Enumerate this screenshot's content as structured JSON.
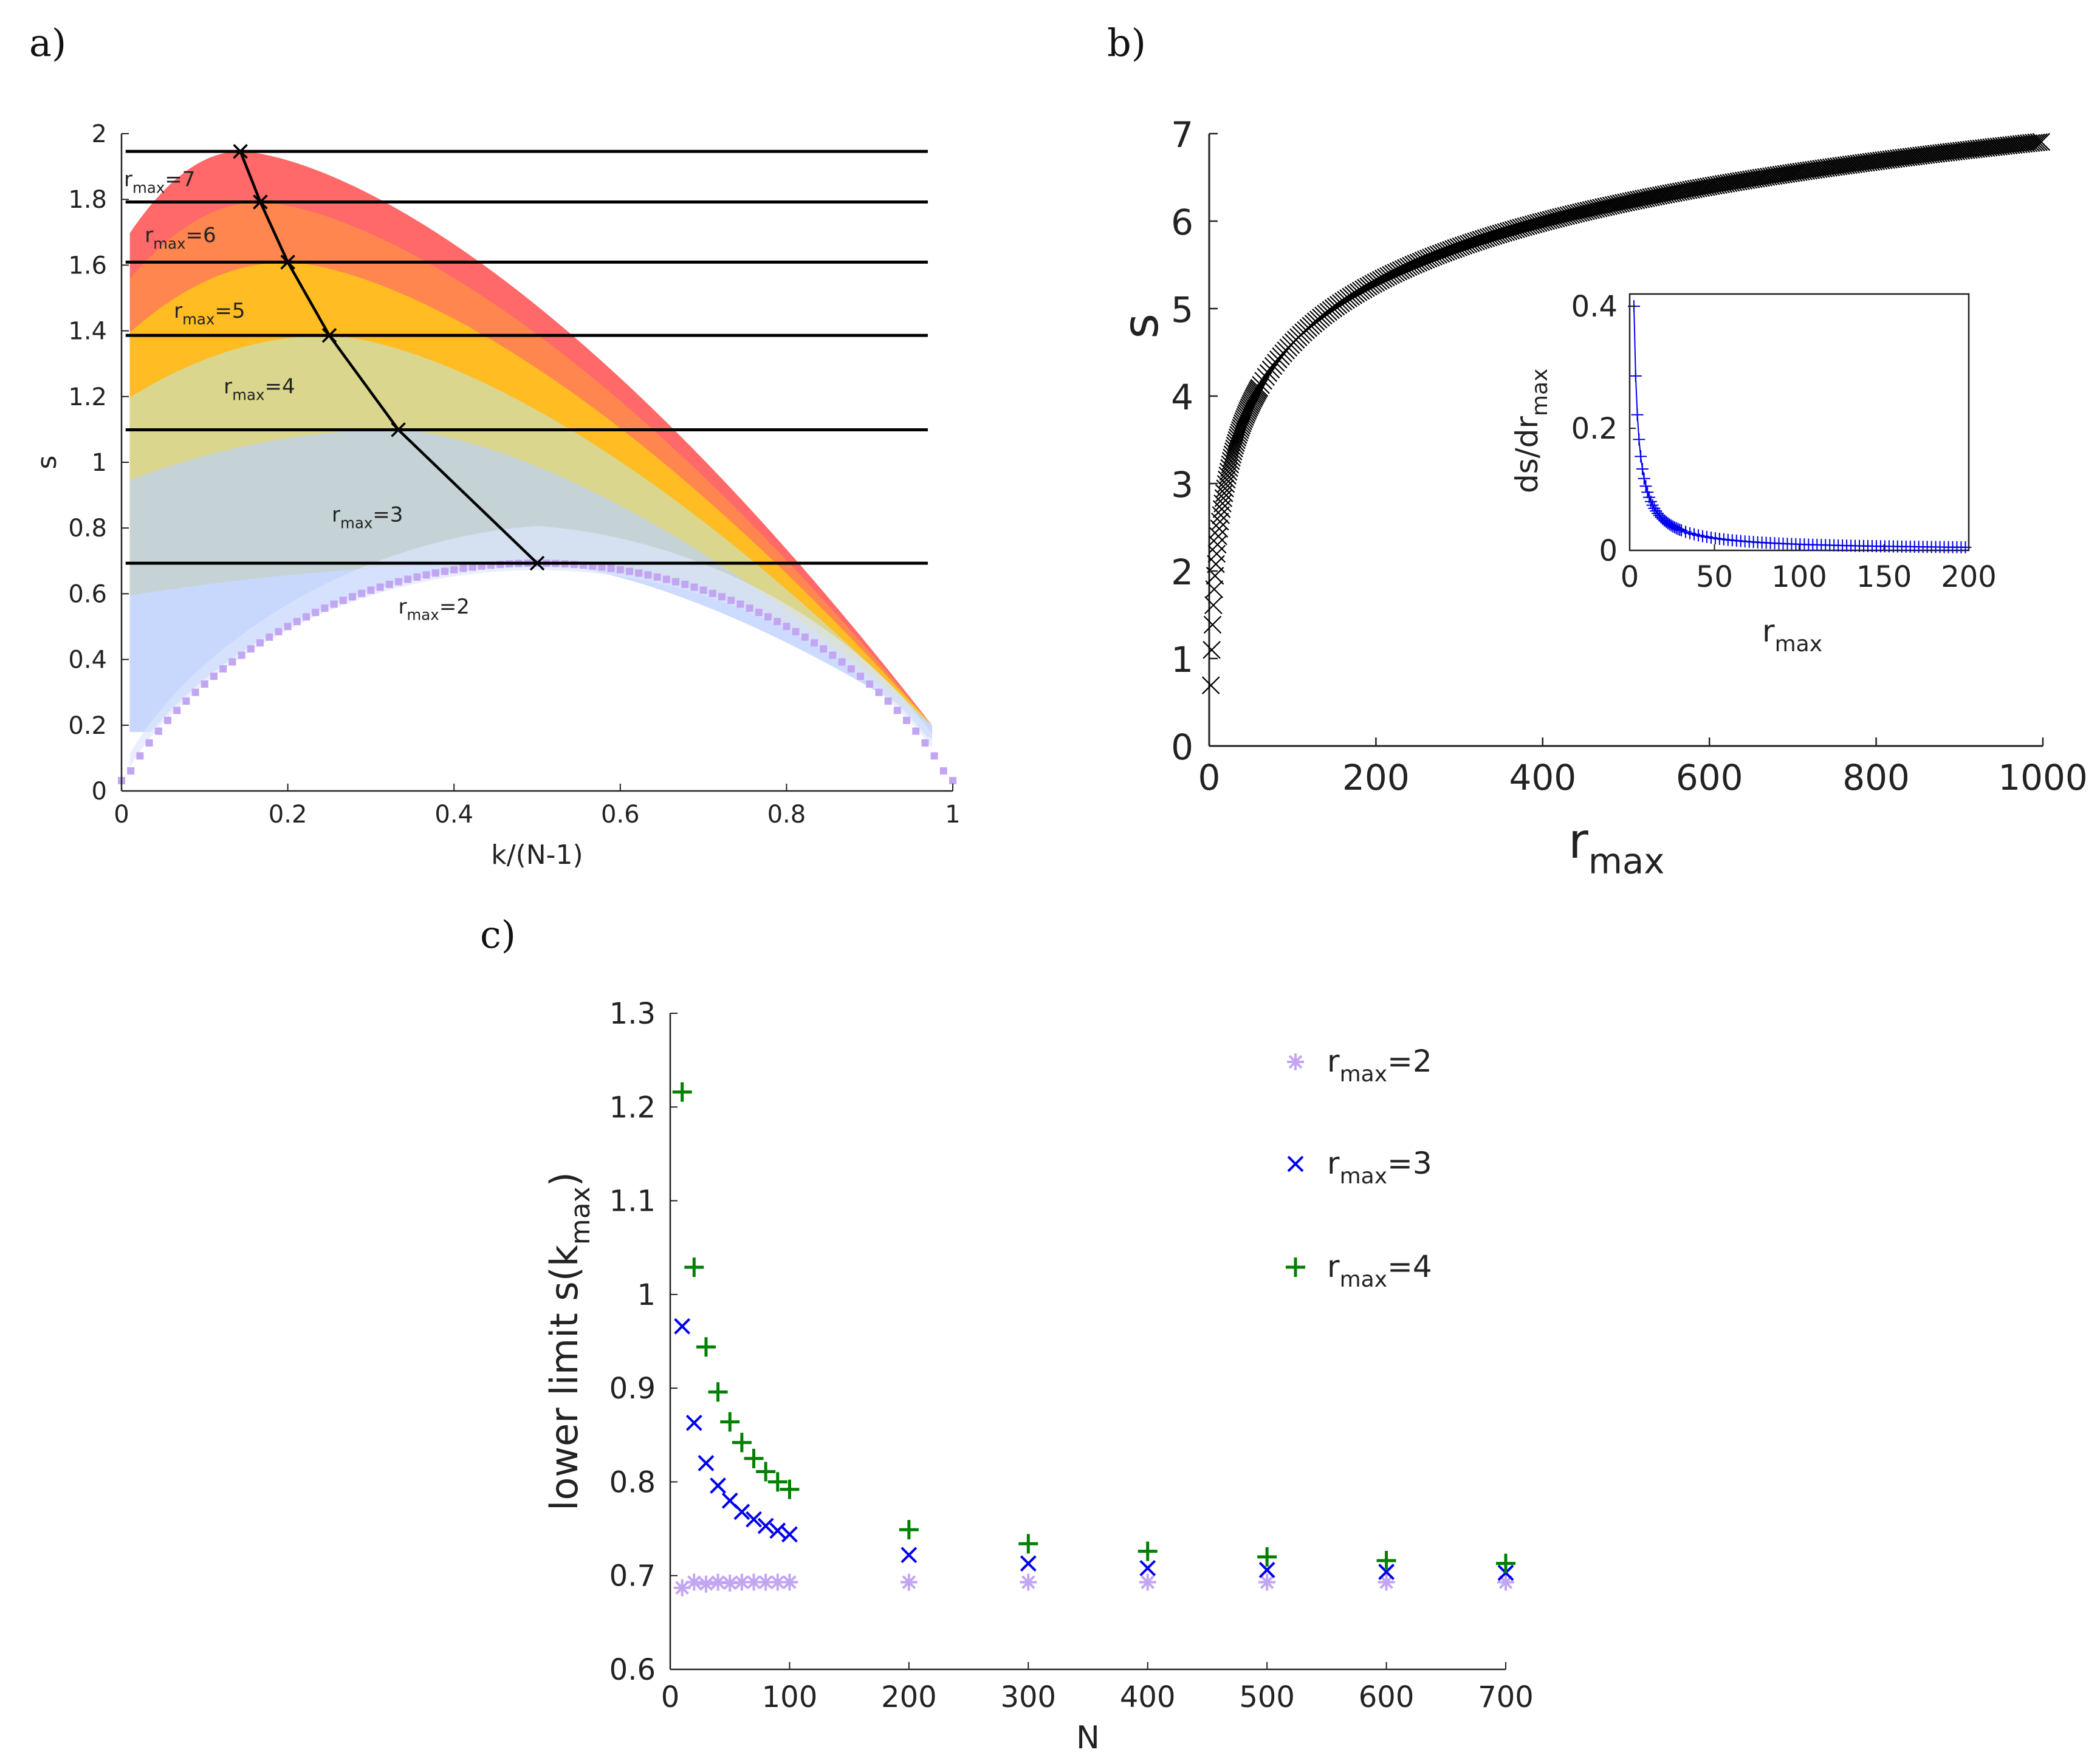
{
  "chart_data": [
    {
      "panel": "a)",
      "type": "area",
      "xlabel": "k/(N-1)",
      "ylabel": "s",
      "xlim": [
        0,
        1
      ],
      "ylim": [
        0,
        2
      ],
      "xticks": [
        "0",
        "0.2",
        "0.4",
        "0.6",
        "0.8",
        "1"
      ],
      "yticks": [
        "0",
        "0.2",
        "0.4",
        "0.6",
        "0.8",
        "1",
        "1.2",
        "1.4",
        "1.6",
        "1.8",
        "2"
      ],
      "bands": [
        {
          "name": "r_max=7",
          "color": "#ff6161",
          "peak_x": 0.143,
          "peak_s": 1.946
        },
        {
          "name": "r_max=6",
          "color": "#ff8a4d",
          "peak_x": 0.167,
          "peak_s": 1.792
        },
        {
          "name": "r_max=5",
          "color": "#ffc020",
          "peak_x": 0.2,
          "peak_s": 1.609
        },
        {
          "name": "r_max=4",
          "color": "#d8d898",
          "peak_x": 0.25,
          "peak_s": 1.386
        },
        {
          "name": "r_max=3",
          "color": "#c4d2dc",
          "peak_x": 0.333,
          "peak_s": 1.099
        },
        {
          "name": "r_max=2",
          "color": "#c8d8ff",
          "peak_x": 0.5,
          "peak_s": 0.693
        }
      ],
      "horizontal_lines": [
        1.946,
        1.792,
        1.609,
        1.386,
        1.099,
        0.693
      ],
      "maxima_line": {
        "x": [
          0.143,
          0.167,
          0.2,
          0.25,
          0.333,
          0.5
        ],
        "y": [
          1.946,
          1.792,
          1.609,
          1.386,
          1.099,
          0.693
        ]
      },
      "labels": [
        {
          "sub": "max",
          "pre": "r",
          "post": "=7"
        },
        {
          "sub": "max",
          "pre": "r",
          "post": "=6"
        },
        {
          "sub": "max",
          "pre": "r",
          "post": "=5"
        },
        {
          "sub": "max",
          "pre": "r",
          "post": "=4"
        },
        {
          "sub": "max",
          "pre": "r",
          "post": "=3"
        },
        {
          "sub": "max",
          "pre": "r",
          "post": "=2"
        }
      ],
      "binary_entropy_dots_color": "#c3a6f2"
    },
    {
      "panel": "b)",
      "type": "scatter",
      "xlabel": "r",
      "xlabel_sub": "max",
      "ylabel": "s",
      "xlim": [
        0,
        1000
      ],
      "ylim": [
        0,
        7
      ],
      "xticks": [
        "0",
        "200",
        "400",
        "600",
        "800",
        "1000"
      ],
      "yticks": [
        "0",
        "1",
        "2",
        "3",
        "4",
        "5",
        "6",
        "7"
      ],
      "marker": "x",
      "color": "#000000",
      "function": "s = ln(r_max)",
      "r_range": [
        2,
        1000
      ],
      "inset": {
        "type": "line",
        "ylabel": "ds/dr",
        "ylabel_sub": "max",
        "xlabel": "r",
        "xlabel_sub": "max",
        "xlim": [
          0,
          200
        ],
        "ylim": [
          0,
          0.42
        ],
        "xticks": [
          "0",
          "50",
          "100",
          "150",
          "200"
        ],
        "yticks": [
          "0",
          "0.2",
          "0.4"
        ],
        "marker": "+",
        "color": "#0000ee",
        "function": "ds/dr = 1/r",
        "r_range": [
          2.5,
          200
        ]
      }
    },
    {
      "panel": "c)",
      "type": "scatter",
      "xlabel": "N",
      "ylabel": "lower limit  s(k",
      "ylabel_sub": "max",
      "ylabel_end": ")",
      "xlim": [
        0,
        700
      ],
      "ylim": [
        0.6,
        1.3
      ],
      "xticks": [
        "0",
        "100",
        "200",
        "300",
        "400",
        "500",
        "600",
        "700"
      ],
      "yticks": [
        "0.6",
        "0.7",
        "0.8",
        "0.9",
        "1",
        "1.1",
        "1.2",
        "1.3"
      ],
      "series": [
        {
          "name": "r_max=2",
          "marker": "*",
          "color": "#c3a6f2",
          "x": [
            10,
            20,
            30,
            40,
            50,
            60,
            70,
            80,
            90,
            100,
            200,
            300,
            400,
            500,
            600,
            700
          ],
          "y": [
            0.687,
            0.693,
            0.691,
            0.693,
            0.692,
            0.693,
            0.693,
            0.693,
            0.693,
            0.693,
            0.693,
            0.693,
            0.693,
            0.693,
            0.693,
            0.693
          ]
        },
        {
          "name": "r_max=3",
          "marker": "x",
          "color": "#0000ee",
          "x": [
            10,
            20,
            30,
            40,
            50,
            60,
            70,
            80,
            90,
            100,
            200,
            300,
            400,
            500,
            600,
            700
          ],
          "y": [
            0.966,
            0.863,
            0.82,
            0.796,
            0.78,
            0.768,
            0.76,
            0.753,
            0.748,
            0.744,
            0.722,
            0.713,
            0.708,
            0.706,
            0.704,
            0.703
          ]
        },
        {
          "name": "r_max=4",
          "marker": "+",
          "color": "#008000",
          "x": [
            10,
            20,
            30,
            40,
            50,
            60,
            70,
            80,
            90,
            100,
            200,
            300,
            400,
            500,
            600,
            700
          ],
          "y": [
            1.216,
            1.029,
            0.944,
            0.896,
            0.864,
            0.842,
            0.825,
            0.811,
            0.8,
            0.792,
            0.749,
            0.734,
            0.726,
            0.72,
            0.716,
            0.713
          ]
        }
      ],
      "legend": [
        {
          "pre": "r",
          "sub": "max",
          "post": "=2"
        },
        {
          "pre": "r",
          "sub": "max",
          "post": "=3"
        },
        {
          "pre": "r",
          "sub": "max",
          "post": "=4"
        }
      ],
      "legend_placement": "top-right"
    }
  ]
}
